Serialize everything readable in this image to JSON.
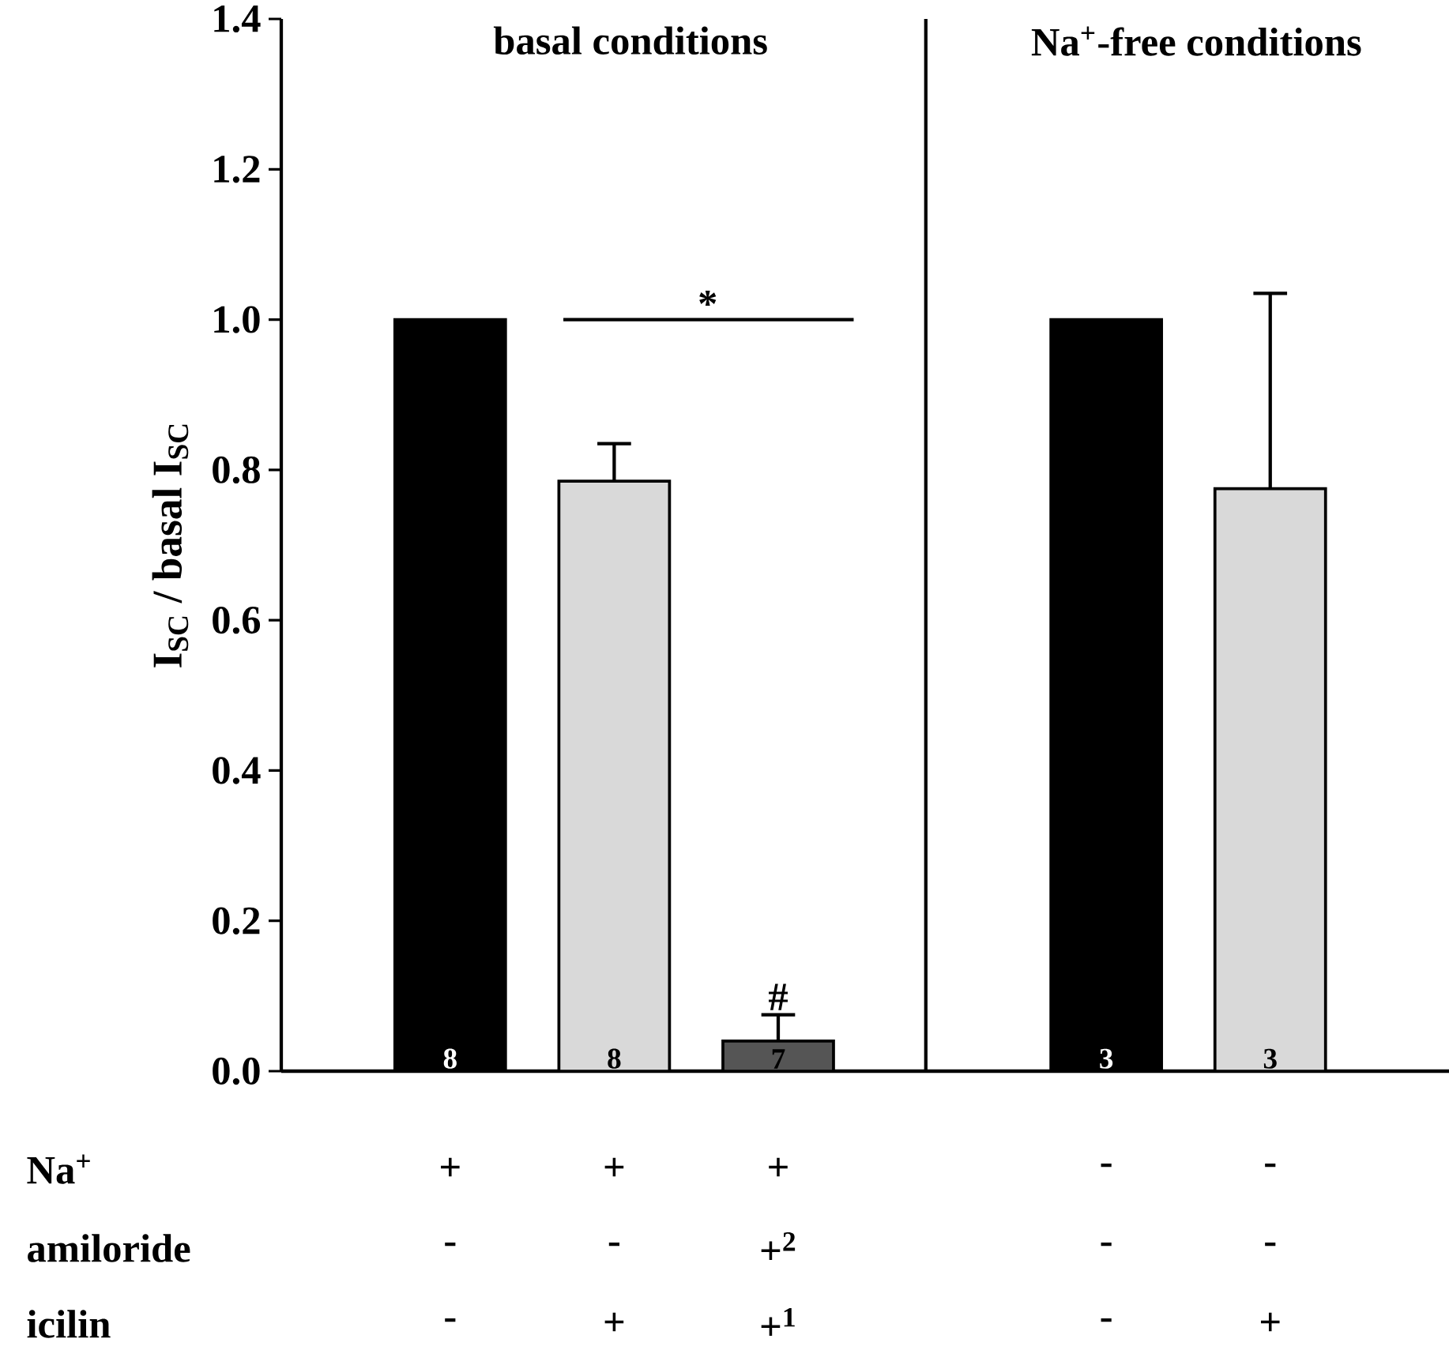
{
  "chart_data": {
    "type": "bar",
    "ylabel": "I$_{SC}$ / basal I$_{SC}$",
    "categories": [
      null,
      null,
      null,
      null,
      null,
      null
    ],
    "values": [
      1.0,
      0.785,
      0.04,
      null,
      1.0,
      0.775
    ],
    "colors": [
      "#000000",
      "#d9d9d9",
      "#555555",
      null,
      "#000000",
      "#d9d9d9"
    ],
    "errors": [
      null,
      [
        0.785,
        0.835
      ],
      [
        0.04,
        0.075
      ],
      null,
      null,
      [
        0.775,
        1.035
      ]
    ],
    "ylim": [
      0,
      1.4
    ],
    "yticks": [
      {
        "value": 0,
        "label": "0.0"
      },
      {
        "value": 0.2,
        "label": "0.2"
      },
      {
        "value": 0.4,
        "label": "0.4"
      },
      {
        "value": 0.6,
        "label": "0.6"
      },
      {
        "value": 0.8,
        "label": "0.8"
      },
      {
        "value": 1.0,
        "label": "1.0"
      },
      {
        "value": 1.2,
        "label": "1.2"
      },
      {
        "value": 1.4,
        "label": "1.4"
      }
    ],
    "tick_labels": "y",
    "grid": false,
    "annotations": [
      "basal conditions",
      "Na$^{+}$-free conditions",
      "*",
      "#",
      "8",
      "8",
      "7",
      "3",
      "3",
      "Na$^{+}$",
      "amiloride",
      "icilin",
      "+",
      "+",
      "+",
      "-",
      "-",
      "-",
      "-",
      "+$^{2}$",
      "-",
      "-",
      "-",
      "+",
      "+$^{1}$",
      "-",
      "+"
    ]
  }
}
